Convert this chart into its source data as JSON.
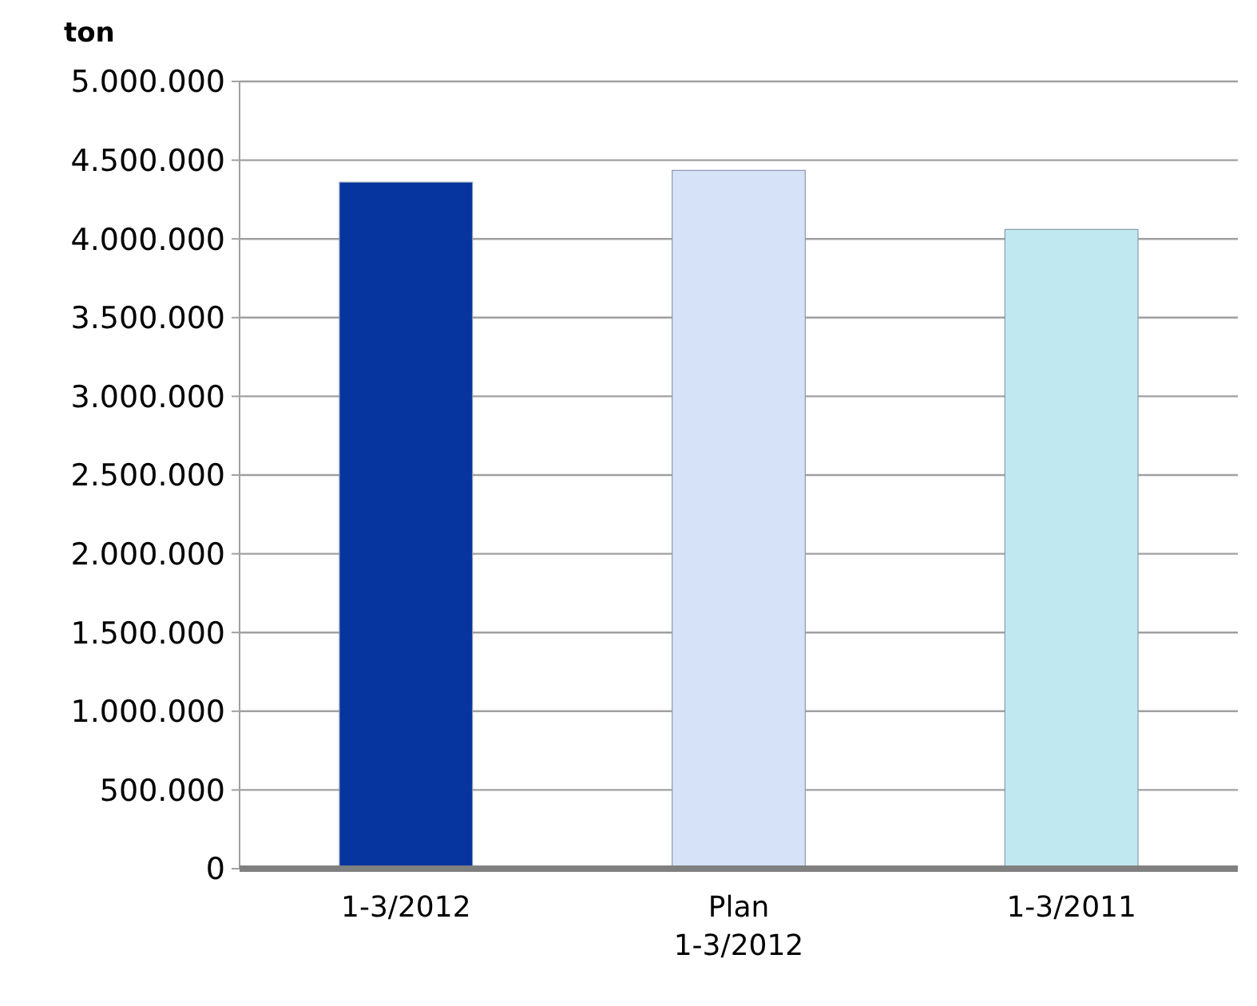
{
  "chart_data": {
    "type": "bar",
    "ylabel": "ton",
    "categories": [
      "1-3/2012",
      "Plan\n1-3/2012",
      "1-3/2011"
    ],
    "values": [
      4360000,
      4435000,
      4060000
    ],
    "colors": [
      "#0635a0",
      "#d6e2f8",
      "#c0e8f0"
    ],
    "ylim": [
      0,
      5000000
    ],
    "yticks": [
      {
        "value": 0,
        "label": "0"
      },
      {
        "value": 500000,
        "label": "500.000"
      },
      {
        "value": 1000000,
        "label": "1.000.000"
      },
      {
        "value": 1500000,
        "label": "1.500.000"
      },
      {
        "value": 2000000,
        "label": "2.000.000"
      },
      {
        "value": 2500000,
        "label": "2.500.000"
      },
      {
        "value": 3000000,
        "label": "3.000.000"
      },
      {
        "value": 3500000,
        "label": "3.500.000"
      },
      {
        "value": 4000000,
        "label": "4.000.000"
      },
      {
        "value": 4500000,
        "label": "4.500.000"
      },
      {
        "value": 5000000,
        "label": "5.000.000"
      }
    ],
    "grid": true
  }
}
